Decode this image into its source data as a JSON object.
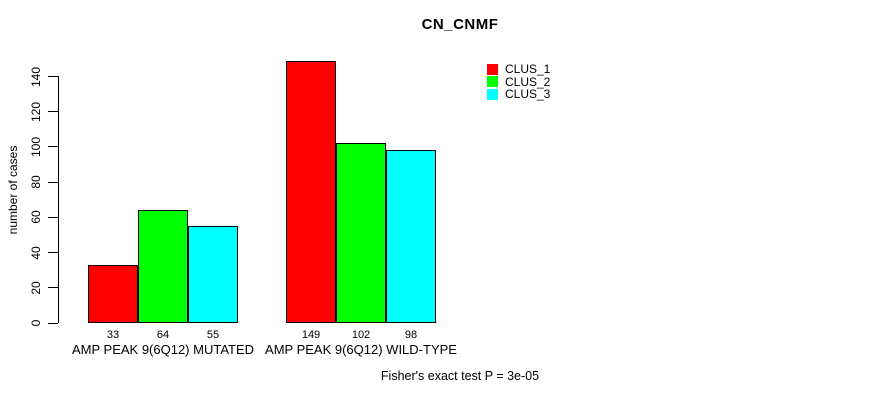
{
  "page": {
    "background": "#FFFFFF",
    "text_color": "#000000"
  },
  "chart_data": {
    "type": "bar",
    "title": "CN_CNMF",
    "xlabel": "",
    "ylabel": "number of cases",
    "ylim": [
      0,
      140
    ],
    "y_ticks": [
      0,
      20,
      40,
      60,
      80,
      100,
      120,
      140
    ],
    "grid": false,
    "legend_position": "top-right",
    "axis_color": "#000000",
    "bar_border_color": "#000000",
    "categories": [
      "AMP PEAK 9(6Q12) MUTATED",
      "AMP PEAK 9(6Q12) WILD-TYPE"
    ],
    "series": [
      {
        "name": "CLUS_1",
        "color": "#FF0000",
        "values": [
          33,
          149
        ]
      },
      {
        "name": "CLUS_2",
        "color": "#00FF00",
        "values": [
          64,
          102
        ]
      },
      {
        "name": "CLUS_3",
        "color": "#00FFFF",
        "values": [
          55,
          98
        ]
      }
    ],
    "bar_value_labels": [
      [
        33,
        64,
        55
      ],
      [
        149,
        102,
        98
      ]
    ],
    "annotation": "Fisher's exact test P = 3e-05"
  }
}
